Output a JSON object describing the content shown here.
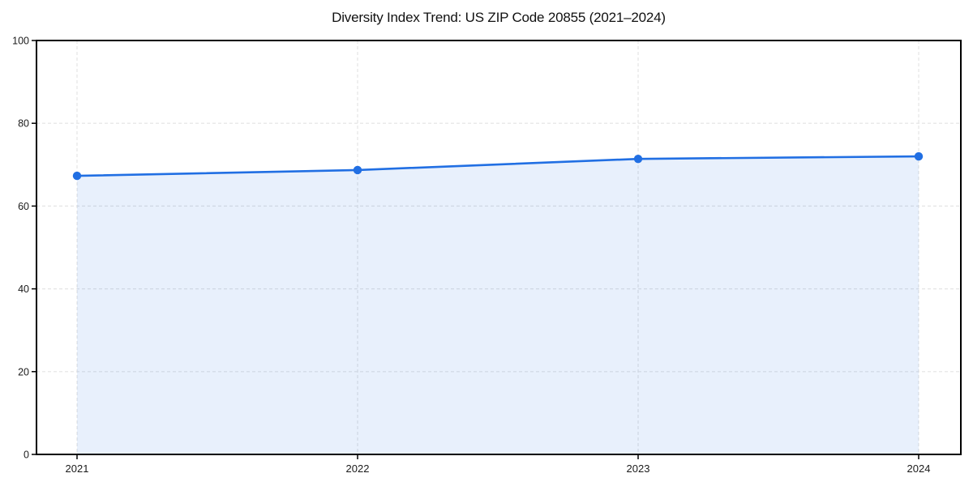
{
  "chart_data": {
    "type": "area",
    "title": "Diversity Index Trend: US ZIP Code 20855 (2021–2024)",
    "categories": [
      "2021",
      "2022",
      "2023",
      "2024"
    ],
    "series": [
      {
        "name": "Diversity Index",
        "values": [
          67.3,
          68.7,
          71.4,
          72.0
        ]
      }
    ],
    "xlabel": "",
    "ylabel": "",
    "ylim": [
      0,
      100
    ],
    "yticks": [
      0,
      20,
      40,
      60,
      80,
      100
    ],
    "grid": true,
    "grid_style": "dashed",
    "legend": false,
    "colors": {
      "line": "#216FE3",
      "marker": "#216FE3",
      "fill": "#216FE3",
      "fill_opacity": 0.1,
      "grid": "#e4e4e4",
      "spine": "#000000",
      "tick_text": "#1a1a1a",
      "title_text": "#111111",
      "background": "#ffffff"
    }
  }
}
